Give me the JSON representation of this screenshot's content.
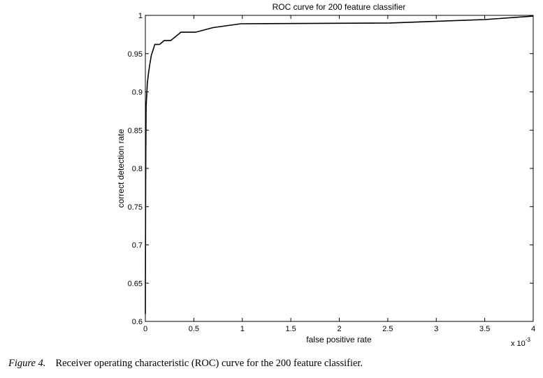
{
  "chart_data": {
    "type": "line",
    "title": "ROC curve for 200 feature classifier",
    "xlabel": "false positive rate",
    "ylabel": "correct detection rate",
    "x_multiplier": "x 10",
    "x_multiplier_exponent": "-3",
    "xlim": [
      0,
      4
    ],
    "ylim": [
      0.6,
      1
    ],
    "xticks": [
      "0",
      "0.5",
      "1",
      "1.5",
      "2",
      "2.5",
      "3",
      "3.5",
      "4"
    ],
    "yticks": [
      "0.6",
      "0.65",
      "0.7",
      "0.75",
      "0.8",
      "0.85",
      "0.9",
      "0.95",
      "1"
    ],
    "grid": false,
    "series": [
      {
        "color": "#000000",
        "x": [
          0.0,
          0.003,
          0.005,
          0.008,
          0.02,
          0.031,
          0.043,
          0.062,
          0.098,
          0.146,
          0.194,
          0.261,
          0.367,
          0.518,
          0.698,
          0.986,
          2.52,
          3.5,
          4.0
        ],
        "y": [
          0.61,
          0.77,
          0.829,
          0.881,
          0.911,
          0.923,
          0.934,
          0.948,
          0.962,
          0.962,
          0.967,
          0.967,
          0.978,
          0.978,
          0.984,
          0.989,
          0.99,
          0.9945,
          0.999
        ]
      }
    ]
  },
  "caption": {
    "label": "Figure 4.",
    "text": "Receiver operating characteristic (ROC) curve for the 200 feature classifier."
  }
}
